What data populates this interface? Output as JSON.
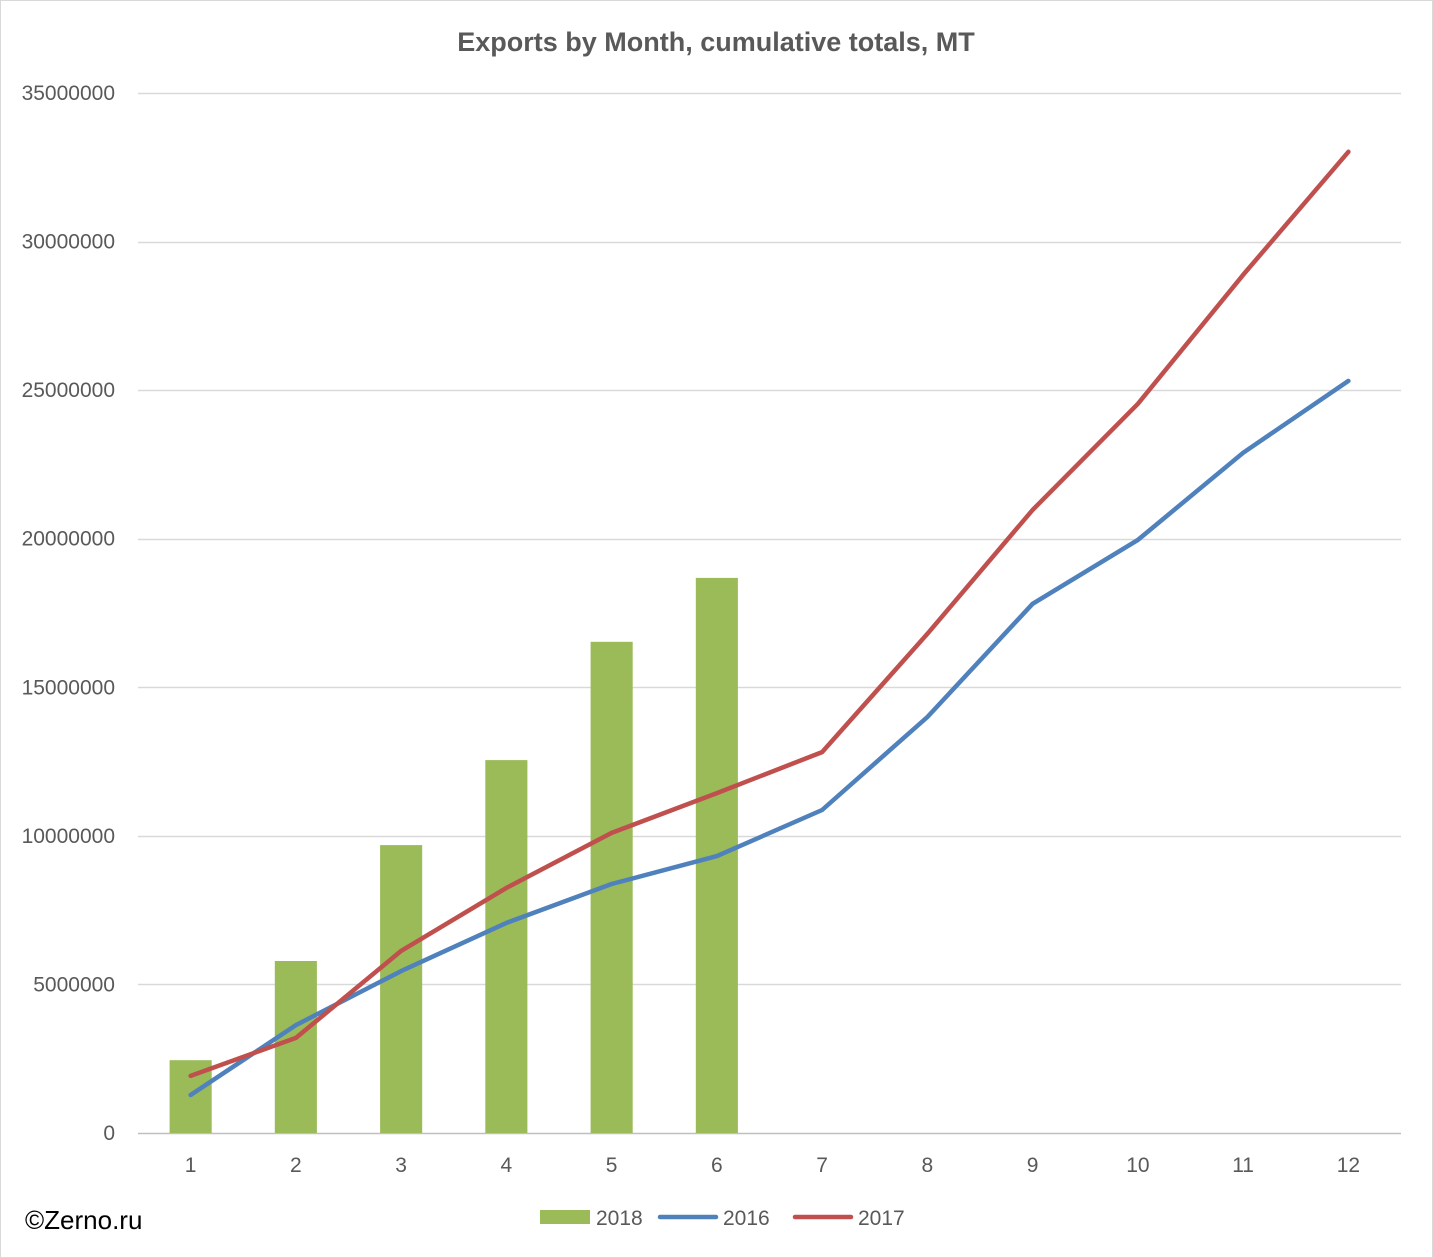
{
  "chart_data": {
    "type": "bar",
    "title": "Exports by Month, cumulative totals, MT",
    "categories": [
      "1",
      "2",
      "3",
      "4",
      "5",
      "6",
      "7",
      "8",
      "9",
      "10",
      "11",
      "12"
    ],
    "ylim": [
      0,
      35000000
    ],
    "yticks": [
      0,
      5000000,
      10000000,
      15000000,
      20000000,
      25000000,
      30000000,
      35000000
    ],
    "grid": true,
    "legend": "bottom",
    "series": [
      {
        "name": "2018",
        "type": "bar",
        "color": "#9BBB59",
        "values": [
          2450000,
          5790000,
          9690000,
          12550000,
          16530000,
          18680000,
          null,
          null,
          null,
          null,
          null,
          null
        ]
      },
      {
        "name": "2016",
        "type": "line",
        "color": "#4F81BD",
        "values": [
          1280000,
          3630000,
          5450000,
          7070000,
          8380000,
          9320000,
          10870000,
          14000000,
          17810000,
          19960000,
          22890000,
          25310000
        ]
      },
      {
        "name": "2017",
        "type": "line",
        "color": "#C0504D",
        "values": [
          1920000,
          3200000,
          6130000,
          8250000,
          10100000,
          11440000,
          12820000,
          16800000,
          20970000,
          24540000,
          28880000,
          33020000
        ]
      }
    ]
  },
  "credit": "©Zerno.ru"
}
